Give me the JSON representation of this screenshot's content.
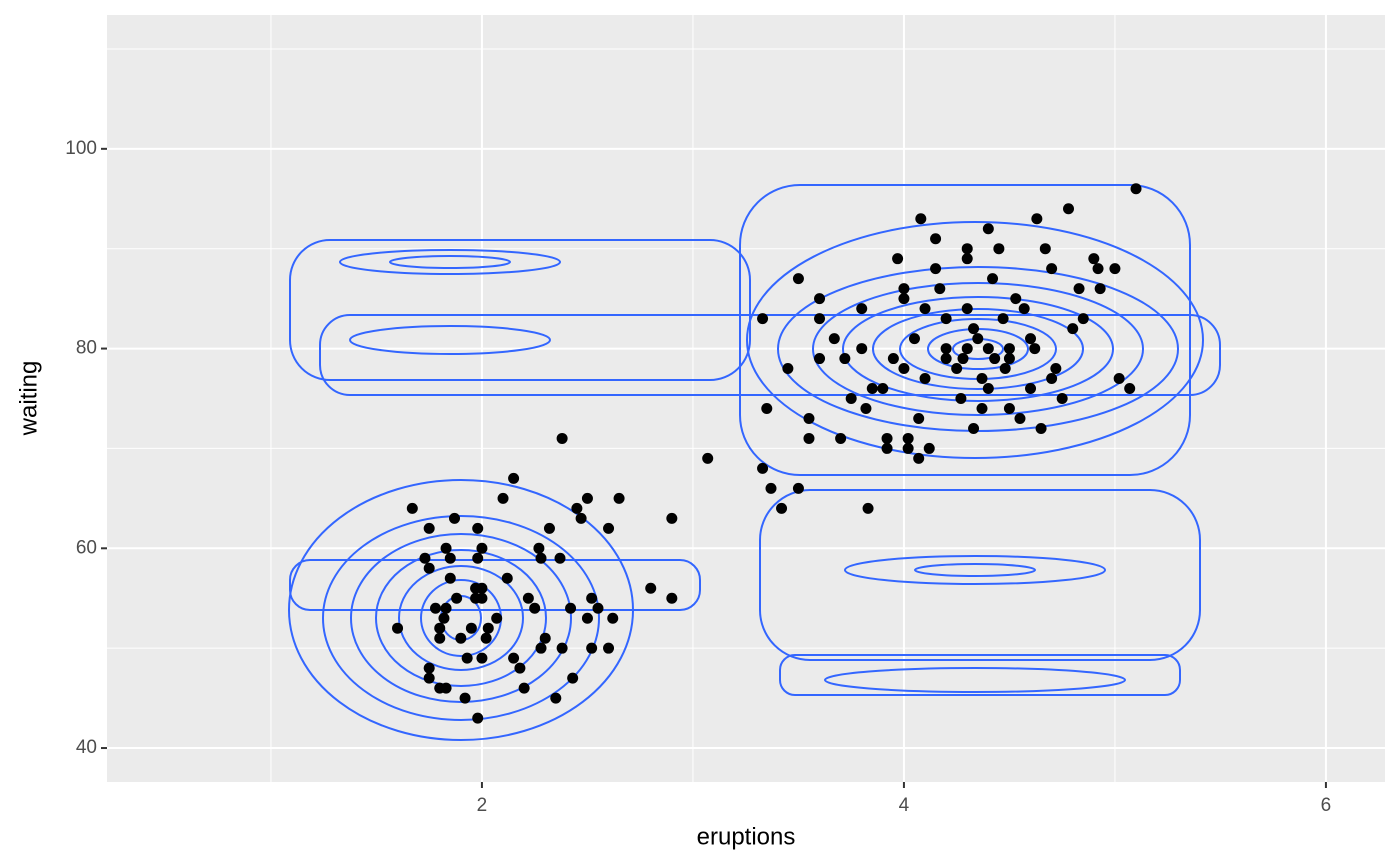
{
  "chart_data": {
    "type": "scatter",
    "x_label": "eruptions",
    "y_label": "waiting",
    "color": "#000000",
    "contour_color": "#3366ff",
    "grid": true,
    "xlim": [
      0.223,
      6.28
    ],
    "xticks": [
      2,
      4,
      6
    ],
    "ylim": [
      36.6,
      113.4
    ],
    "yticks": [
      40,
      60,
      80,
      100
    ],
    "x": [
      1.6,
      1.67,
      1.73,
      1.75,
      1.75,
      1.78,
      1.75,
      1.75,
      1.8,
      1.83,
      1.8,
      1.8,
      1.82,
      1.83,
      1.83,
      1.85,
      1.85,
      1.87,
      1.88,
      1.9,
      1.92,
      1.93,
      1.95,
      1.97,
      1.97,
      1.98,
      1.98,
      1.98,
      2.0,
      2.0,
      2.0,
      2.0,
      2.02,
      2.03,
      2.07,
      2.1,
      2.12,
      2.15,
      2.15,
      2.18,
      2.2,
      2.22,
      2.25,
      2.27,
      2.28,
      2.28,
      2.3,
      2.32,
      2.35,
      2.37,
      2.38,
      2.42,
      2.43,
      2.45,
      2.47,
      2.5,
      2.5,
      2.52,
      2.52,
      2.38,
      2.55,
      2.6,
      2.6,
      2.62,
      2.65,
      2.8,
      2.9,
      2.9,
      3.07,
      3.33,
      3.35,
      3.33,
      3.37,
      3.42,
      3.45,
      3.5,
      3.5,
      3.55,
      3.55,
      3.6,
      3.6,
      3.6,
      3.67,
      3.7,
      3.72,
      3.75,
      3.8,
      3.8,
      3.82,
      3.83,
      3.85,
      3.92,
      3.92,
      3.95,
      3.97,
      4.0,
      4.0,
      4.02,
      4.02,
      4.05,
      4.07,
      4.07,
      4.08,
      4.1,
      4.12,
      4.15,
      4.15,
      4.17,
      4.2,
      4.2,
      4.25,
      4.27,
      4.3,
      4.3,
      4.3,
      4.33,
      4.35,
      4.37,
      4.37,
      4.4,
      4.42,
      4.43,
      4.45,
      4.47,
      4.5,
      4.5,
      4.53,
      4.55,
      4.57,
      4.6,
      4.62,
      4.63,
      4.67,
      4.7,
      4.72,
      4.75,
      4.78,
      4.8,
      4.83,
      4.85,
      4.9,
      4.92,
      4.93,
      5.0,
      5.02,
      5.07,
      5.1,
      4.3,
      4.4,
      4.2,
      4.5,
      4.0,
      4.1,
      4.6,
      4.7,
      4.4,
      3.9,
      4.65,
      4.33,
      4.28,
      4.48
    ],
    "values": [
      52,
      64,
      59,
      62,
      58,
      54,
      48,
      47,
      46,
      46,
      52,
      51,
      53,
      54,
      60,
      59,
      57,
      63,
      55,
      51,
      45,
      49,
      52,
      56,
      55,
      59,
      62,
      43,
      56,
      60,
      55,
      49,
      51,
      52,
      53,
      65,
      57,
      49,
      67,
      48,
      46,
      55,
      54,
      60,
      59,
      50,
      51,
      62,
      45,
      59,
      50,
      54,
      47,
      64,
      63,
      65,
      53,
      55,
      50,
      71,
      54,
      62,
      50,
      53,
      65,
      56,
      55,
      63,
      69,
      83,
      74,
      68,
      66,
      64,
      78,
      87,
      66,
      73,
      71,
      85,
      83,
      79,
      81,
      71,
      79,
      75,
      84,
      80,
      74,
      64,
      76,
      71,
      70,
      79,
      89,
      86,
      85,
      71,
      70,
      81,
      73,
      69,
      93,
      84,
      70,
      91,
      88,
      86,
      83,
      80,
      78,
      75,
      90,
      89,
      84,
      82,
      81,
      77,
      74,
      92,
      87,
      79,
      90,
      83,
      80,
      74,
      85,
      73,
      84,
      81,
      80,
      93,
      90,
      88,
      78,
      75,
      94,
      82,
      86,
      83,
      89,
      88,
      86,
      88,
      77,
      76,
      96,
      80,
      80,
      79,
      79,
      78,
      77,
      76,
      77,
      76,
      76,
      72,
      72,
      79,
      78
    ]
  }
}
